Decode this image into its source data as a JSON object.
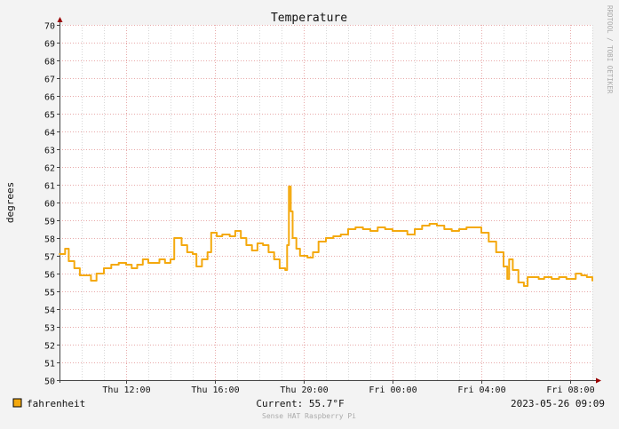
{
  "chart_data": {
    "type": "line",
    "title": "Temperature",
    "ylabel": "degrees",
    "watermark": "RRDTOOL / TOBI OETIKER",
    "ylim": [
      50,
      70
    ],
    "y_ticks": [
      50,
      51,
      52,
      53,
      54,
      55,
      56,
      57,
      58,
      59,
      60,
      61,
      62,
      63,
      64,
      65,
      66,
      67,
      68,
      69,
      70
    ],
    "x_range": [
      "2023-05-25 09:00",
      "2023-05-26 09:00"
    ],
    "x_ticks": [
      {
        "time": "2023-05-25 12:00",
        "label": "Thu 12:00"
      },
      {
        "time": "2023-05-25 16:00",
        "label": "Thu 16:00"
      },
      {
        "time": "2023-05-25 20:00",
        "label": "Thu 20:00"
      },
      {
        "time": "2023-05-26 00:00",
        "label": "Fri 00:00"
      },
      {
        "time": "2023-05-26 04:00",
        "label": "Fri 04:00"
      },
      {
        "time": "2023-05-26 08:00",
        "label": "Fri 08:00"
      }
    ],
    "grid": true,
    "series": [
      {
        "name": "fahrenheit",
        "color": "#f4a90e",
        "points": [
          [
            "2023-05-25 09:00",
            57.1
          ],
          [
            "2023-05-25 09:15",
            57.4
          ],
          [
            "2023-05-25 09:25",
            56.7
          ],
          [
            "2023-05-25 09:40",
            56.3
          ],
          [
            "2023-05-25 09:55",
            55.9
          ],
          [
            "2023-05-25 10:15",
            55.9
          ],
          [
            "2023-05-25 10:25",
            55.6
          ],
          [
            "2023-05-25 10:40",
            56.0
          ],
          [
            "2023-05-25 11:00",
            56.3
          ],
          [
            "2023-05-25 11:20",
            56.5
          ],
          [
            "2023-05-25 11:40",
            56.6
          ],
          [
            "2023-05-25 12:00",
            56.5
          ],
          [
            "2023-05-25 12:15",
            56.3
          ],
          [
            "2023-05-25 12:30",
            56.5
          ],
          [
            "2023-05-25 12:45",
            56.8
          ],
          [
            "2023-05-25 13:00",
            56.6
          ],
          [
            "2023-05-25 13:15",
            56.6
          ],
          [
            "2023-05-25 13:30",
            56.8
          ],
          [
            "2023-05-25 13:45",
            56.6
          ],
          [
            "2023-05-25 14:00",
            56.8
          ],
          [
            "2023-05-25 14:10",
            58.0
          ],
          [
            "2023-05-25 14:20",
            58.0
          ],
          [
            "2023-05-25 14:30",
            57.6
          ],
          [
            "2023-05-25 14:45",
            57.2
          ],
          [
            "2023-05-25 15:00",
            57.1
          ],
          [
            "2023-05-25 15:10",
            56.4
          ],
          [
            "2023-05-25 15:25",
            56.8
          ],
          [
            "2023-05-25 15:40",
            57.2
          ],
          [
            "2023-05-25 15:50",
            58.3
          ],
          [
            "2023-05-25 16:05",
            58.1
          ],
          [
            "2023-05-25 16:20",
            58.2
          ],
          [
            "2023-05-25 16:40",
            58.1
          ],
          [
            "2023-05-25 16:55",
            58.4
          ],
          [
            "2023-05-25 17:10",
            58.0
          ],
          [
            "2023-05-25 17:25",
            57.6
          ],
          [
            "2023-05-25 17:40",
            57.3
          ],
          [
            "2023-05-25 17:55",
            57.7
          ],
          [
            "2023-05-25 18:10",
            57.6
          ],
          [
            "2023-05-25 18:25",
            57.2
          ],
          [
            "2023-05-25 18:40",
            56.8
          ],
          [
            "2023-05-25 18:55",
            56.3
          ],
          [
            "2023-05-25 19:10",
            56.2
          ],
          [
            "2023-05-25 19:15",
            57.6
          ],
          [
            "2023-05-25 19:20",
            60.9
          ],
          [
            "2023-05-25 19:25",
            59.5
          ],
          [
            "2023-05-25 19:30",
            58.0
          ],
          [
            "2023-05-25 19:40",
            57.4
          ],
          [
            "2023-05-25 19:50",
            57.0
          ],
          [
            "2023-05-25 20:10",
            56.9
          ],
          [
            "2023-05-25 20:25",
            57.2
          ],
          [
            "2023-05-25 20:40",
            57.8
          ],
          [
            "2023-05-25 21:00",
            58.0
          ],
          [
            "2023-05-25 21:20",
            58.1
          ],
          [
            "2023-05-25 21:40",
            58.2
          ],
          [
            "2023-05-25 22:00",
            58.5
          ],
          [
            "2023-05-25 22:20",
            58.6
          ],
          [
            "2023-05-25 22:40",
            58.5
          ],
          [
            "2023-05-25 23:00",
            58.4
          ],
          [
            "2023-05-25 23:20",
            58.6
          ],
          [
            "2023-05-25 23:40",
            58.5
          ],
          [
            "2023-05-26 00:00",
            58.4
          ],
          [
            "2023-05-26 00:20",
            58.4
          ],
          [
            "2023-05-26 00:40",
            58.2
          ],
          [
            "2023-05-26 01:00",
            58.5
          ],
          [
            "2023-05-26 01:20",
            58.7
          ],
          [
            "2023-05-26 01:40",
            58.8
          ],
          [
            "2023-05-26 02:00",
            58.7
          ],
          [
            "2023-05-26 02:20",
            58.5
          ],
          [
            "2023-05-26 02:40",
            58.4
          ],
          [
            "2023-05-26 03:00",
            58.5
          ],
          [
            "2023-05-26 03:20",
            58.6
          ],
          [
            "2023-05-26 03:40",
            58.6
          ],
          [
            "2023-05-26 04:00",
            58.3
          ],
          [
            "2023-05-26 04:20",
            57.8
          ],
          [
            "2023-05-26 04:40",
            57.2
          ],
          [
            "2023-05-26 05:00",
            56.4
          ],
          [
            "2023-05-26 05:10",
            55.7
          ],
          [
            "2023-05-26 05:15",
            56.8
          ],
          [
            "2023-05-26 05:25",
            56.2
          ],
          [
            "2023-05-26 05:40",
            55.5
          ],
          [
            "2023-05-26 05:55",
            55.3
          ],
          [
            "2023-05-26 06:05",
            55.8
          ],
          [
            "2023-05-26 06:20",
            55.8
          ],
          [
            "2023-05-26 06:35",
            55.7
          ],
          [
            "2023-05-26 06:50",
            55.8
          ],
          [
            "2023-05-26 07:10",
            55.7
          ],
          [
            "2023-05-26 07:30",
            55.8
          ],
          [
            "2023-05-26 07:50",
            55.7
          ],
          [
            "2023-05-26 08:05",
            55.7
          ],
          [
            "2023-05-26 08:15",
            56.0
          ],
          [
            "2023-05-26 08:30",
            55.9
          ],
          [
            "2023-05-26 08:45",
            55.8
          ],
          [
            "2023-05-26 09:00",
            55.6
          ]
        ]
      }
    ],
    "legend": {
      "label": "fahrenheit",
      "placement": "bottom-left"
    },
    "current_text": "Current: 55.7°F",
    "timestamp_text": "2023-05-26 09:09",
    "footer": "Sense HAT Raspberry Pi"
  },
  "colors": {
    "background": "#f3f3f3",
    "canvas": "#ffffff",
    "major_grid": "#e8aaaa",
    "minor_grid": "#d7d7d7",
    "axis": "#444444",
    "arrow": "#990000",
    "text": "#111111",
    "faint_text": "#aaaaaa"
  }
}
